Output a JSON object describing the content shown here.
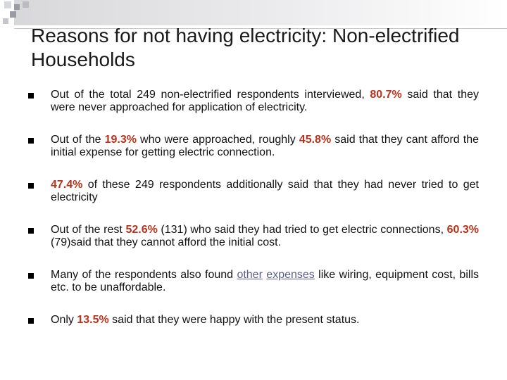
{
  "colors": {
    "highlight": "#b8321c",
    "link": "#5a5f8a",
    "header_square_dark": "#9a9ca3",
    "header_square_light": "#d7d8dc",
    "bullet": "#000000"
  },
  "slide": {
    "title": "Reasons for not having electricity: Non-electrified Households",
    "bullet_icon": "square-bullet-icon",
    "bullets": [
      {
        "parts": [
          {
            "text": "Out of the total 249 non-electrified respondents interviewed, "
          },
          {
            "text": "80.7%",
            "style": "highlight"
          },
          {
            "text": " said that they were never approached for application of electricity."
          }
        ]
      },
      {
        "parts": [
          {
            "text": "Out of the "
          },
          {
            "text": "19.3%",
            "style": "highlight"
          },
          {
            "text": " who were approached, roughly "
          },
          {
            "text": "45.8%",
            "style": "highlight"
          },
          {
            "text": " said that they cant afford the initial expense for getting electric connection."
          }
        ]
      },
      {
        "parts": [
          {
            "text": "47.4%",
            "style": "highlight"
          },
          {
            "text": " of these 249 respondents additionally said that they had never tried to get electricity"
          }
        ]
      },
      {
        "parts": [
          {
            "text": "Out of the rest "
          },
          {
            "text": "52.6%",
            "style": "highlight"
          },
          {
            "text": " (131) who said they had tried to get electric connections, "
          },
          {
            "text": "60.3%",
            "style": "highlight"
          },
          {
            "text": " (79)said that they cannot afford the initial cost."
          }
        ]
      },
      {
        "parts": [
          {
            "text": "Many of the respondents also found "
          },
          {
            "text": "other",
            "style": "link"
          },
          {
            "text": " "
          },
          {
            "text": "expenses",
            "style": "link"
          },
          {
            "text": " like wiring, equipment cost, bills etc. to be unaffordable."
          }
        ]
      },
      {
        "parts": [
          {
            "text": "Only "
          },
          {
            "text": "13.5%",
            "style": "highlight"
          },
          {
            "text": " said that they were happy with the present status."
          }
        ]
      }
    ]
  }
}
